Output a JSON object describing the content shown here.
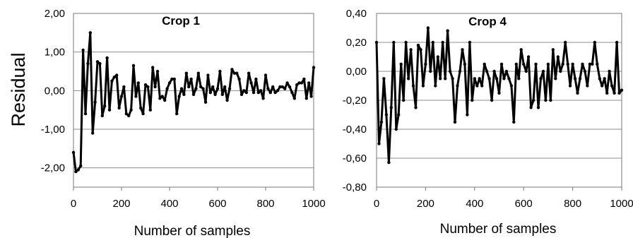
{
  "figure": {
    "ylabel": "Residual"
  },
  "chart_data": [
    {
      "type": "line",
      "title": "Crop 1",
      "xlabel": "Number of samples",
      "ylabel": "Residual",
      "xlim": [
        0,
        1000
      ],
      "ylim": [
        -2.5,
        2.0
      ],
      "xticks": [
        0,
        200,
        400,
        600,
        800,
        1000
      ],
      "xtick_labels": [
        "0",
        "200",
        "400",
        "600",
        "800",
        "1000"
      ],
      "yticks": [
        2.0,
        1.0,
        0.0,
        -1.0,
        -2.0
      ],
      "ytick_labels": [
        "2,00",
        "1,00",
        "0,00",
        "-1,00",
        "-2,00"
      ],
      "grid": "horizontal",
      "series": [
        {
          "x": [
            0,
            10,
            20,
            30,
            40,
            50,
            60,
            70,
            80,
            90,
            100,
            110,
            120,
            130,
            140,
            150,
            160,
            170,
            180,
            190,
            200,
            210,
            220,
            230,
            240,
            250,
            260,
            270,
            280,
            290,
            300,
            310,
            320,
            330,
            340,
            350,
            360,
            370,
            380,
            390,
            400,
            410,
            420,
            430,
            440,
            450,
            460,
            470,
            480,
            490,
            500,
            510,
            520,
            530,
            540,
            550,
            560,
            570,
            580,
            590,
            600,
            610,
            620,
            630,
            640,
            650,
            660,
            670,
            680,
            690,
            700,
            710,
            720,
            730,
            740,
            750,
            760,
            770,
            780,
            790,
            800,
            810,
            820,
            830,
            840,
            850,
            860,
            870,
            880,
            890,
            900,
            910,
            920,
            930,
            940,
            950,
            960,
            970,
            980,
            990,
            1000
          ],
          "y": [
            -1.6,
            -2.1,
            -2.05,
            -1.95,
            1.05,
            -0.6,
            0.7,
            1.5,
            -1.1,
            -0.3,
            0.75,
            0.7,
            -0.65,
            -0.4,
            0.85,
            -0.5,
            0.25,
            0.35,
            0.4,
            -0.45,
            -0.15,
            0.1,
            -0.6,
            -0.65,
            -0.5,
            0.65,
            -0.15,
            0.2,
            -0.45,
            -0.6,
            0.15,
            0.1,
            -0.5,
            0.6,
            0.1,
            0.5,
            -0.2,
            -0.15,
            -0.25,
            0.05,
            0.2,
            0.3,
            0.3,
            -0.6,
            -0.15,
            0.05,
            -0.1,
            0.45,
            0.1,
            0.3,
            -0.1,
            0.05,
            0.45,
            0.1,
            0.05,
            -0.3,
            0.4,
            -0.05,
            0.1,
            -0.1,
            0.05,
            0.5,
            -0.1,
            0.1,
            -0.25,
            0.05,
            0.55,
            0.45,
            0.45,
            0.3,
            -0.1,
            0.0,
            -0.05,
            0.45,
            0.2,
            -0.05,
            0.3,
            -0.05,
            0.0,
            -0.2,
            0.4,
            0.05,
            -0.05,
            0.1,
            -0.05,
            0.0,
            0.1,
            0.1,
            0.05,
            0.2,
            0.1,
            -0.05,
            -0.2,
            0.15,
            0.2,
            0.2,
            0.3,
            -0.2,
            0.2,
            -0.15,
            0.6
          ]
        }
      ]
    },
    {
      "type": "line",
      "title": "Crop 4",
      "xlabel": "Number of samples",
      "ylabel": "",
      "xlim": [
        0,
        1000
      ],
      "ylim": [
        -0.8,
        0.4
      ],
      "xticks": [
        0,
        200,
        400,
        600,
        800,
        1000
      ],
      "xtick_labels": [
        "0",
        "200",
        "400",
        "600",
        "800",
        "1000"
      ],
      "yticks": [
        0.4,
        0.2,
        0.0,
        -0.2,
        -0.4,
        -0.6,
        -0.8
      ],
      "ytick_labels": [
        "0,40",
        "0,20",
        "0,00",
        "-0,20",
        "-0,40",
        "-0,60",
        "-0,80"
      ],
      "grid": "horizontal",
      "series": [
        {
          "x": [
            0,
            10,
            20,
            30,
            40,
            50,
            60,
            70,
            80,
            90,
            100,
            110,
            120,
            130,
            140,
            150,
            160,
            170,
            180,
            190,
            200,
            210,
            220,
            230,
            240,
            250,
            260,
            270,
            280,
            290,
            300,
            310,
            320,
            330,
            340,
            350,
            360,
            370,
            380,
            390,
            400,
            410,
            420,
            430,
            440,
            450,
            460,
            470,
            480,
            490,
            500,
            510,
            520,
            530,
            540,
            550,
            560,
            570,
            580,
            590,
            600,
            610,
            620,
            630,
            640,
            650,
            660,
            670,
            680,
            690,
            700,
            710,
            720,
            730,
            740,
            750,
            760,
            770,
            780,
            790,
            800,
            810,
            820,
            830,
            840,
            850,
            860,
            870,
            880,
            890,
            900,
            910,
            920,
            930,
            940,
            950,
            960,
            970,
            980,
            990,
            1000
          ],
          "y": [
            0.2,
            -0.5,
            -0.35,
            -0.05,
            -0.3,
            -0.63,
            -0.25,
            0.2,
            -0.4,
            -0.3,
            0.05,
            -0.2,
            0.2,
            -0.05,
            0.15,
            -0.1,
            -0.25,
            0.18,
            0.15,
            -0.1,
            0.05,
            0.3,
            0.0,
            0.2,
            -0.1,
            0.1,
            -0.05,
            0.2,
            -0.05,
            0.28,
            0.0,
            -0.05,
            -0.35,
            -0.1,
            0.0,
            0.15,
            0.05,
            -0.3,
            0.2,
            -0.2,
            -0.05,
            -0.1,
            -0.05,
            -0.1,
            0.05,
            0.0,
            -0.05,
            -0.2,
            0.0,
            -0.05,
            -0.15,
            0.05,
            -0.05,
            0.0,
            -0.05,
            -0.1,
            -0.35,
            0.05,
            -0.05,
            0.15,
            0.05,
            0.0,
            0.1,
            -0.25,
            -0.2,
            0.05,
            -0.25,
            -0.05,
            0.0,
            -0.2,
            0.05,
            -0.2,
            0.15,
            -0.05,
            0.1,
            0.0,
            0.05,
            0.2,
            0.05,
            -0.1,
            0.05,
            -0.05,
            -0.15,
            -0.05,
            0.05,
            0.0,
            -0.1,
            0.05,
            0.05,
            0.2,
            0.05,
            -0.05,
            -0.1,
            -0.05,
            -0.15,
            0.0,
            -0.1,
            -0.15,
            0.2,
            -0.15,
            -0.13
          ]
        }
      ]
    }
  ]
}
